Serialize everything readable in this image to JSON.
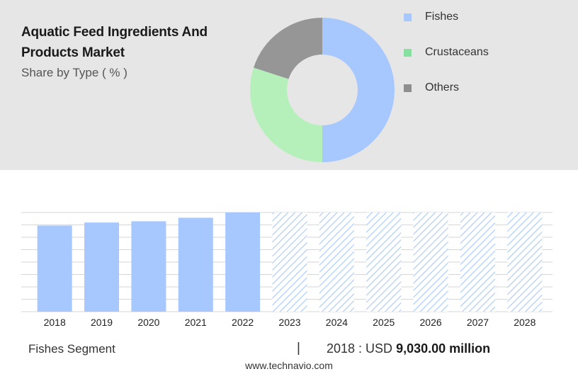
{
  "header": {
    "title": "Aquatic Feed Ingredients And Products Market",
    "subtitle": "Share by Type ( % )"
  },
  "legend": [
    {
      "label": "Fishes",
      "color": "#a6c8ff"
    },
    {
      "label": "Crustaceans",
      "color": "#86e0a0"
    },
    {
      "label": "Others",
      "color": "#8e8e8e"
    }
  ],
  "chart_data": [
    {
      "type": "pie",
      "title": "Share by Type ( % )",
      "categories": [
        "Fishes",
        "Crustaceans",
        "Others"
      ],
      "values": [
        50,
        30,
        20
      ],
      "colors": [
        "#a6c8ff",
        "#b5f0bb",
        "#969696"
      ],
      "donut": true
    },
    {
      "type": "bar",
      "categories": [
        "2018",
        "2019",
        "2020",
        "2021",
        "2022",
        "2023",
        "2024",
        "2025",
        "2026",
        "2027",
        "2028"
      ],
      "values": [
        9030,
        9350,
        9480,
        9850,
        10400,
        null,
        null,
        null,
        null,
        null,
        null
      ],
      "forecast": [
        "2023",
        "2024",
        "2025",
        "2026",
        "2027",
        "2028"
      ],
      "bar_color": "#a6c8ff",
      "xlabel": "",
      "ylabel": "",
      "grid": true,
      "unit": "USD million"
    }
  ],
  "footer": {
    "segment": "Fishes Segment",
    "separator": "|",
    "stat_prefix": "2018 : USD",
    "stat_value": "9,030.00 million",
    "url": "www.technavio.com"
  }
}
